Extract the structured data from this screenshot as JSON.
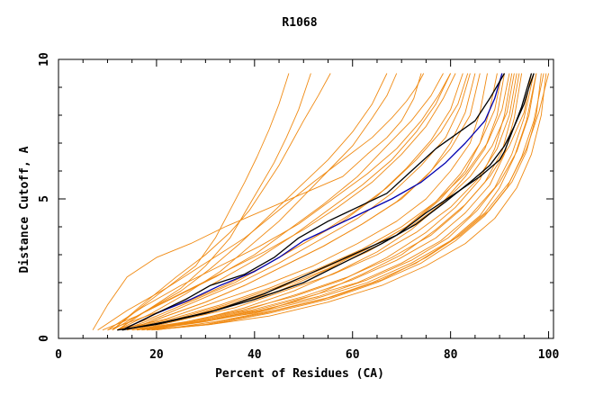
{
  "chart_data": {
    "type": "line",
    "title": "R1068",
    "xlabel": "Percent of Residues (CA)",
    "ylabel": "Distance Cutoff, A",
    "xlim": [
      0,
      101
    ],
    "ylim": [
      0,
      10
    ],
    "xticks": [
      0,
      20,
      40,
      60,
      80,
      100
    ],
    "yticks": [
      0,
      5,
      10
    ],
    "grid": false,
    "legend": "none",
    "colors": {
      "models": "#f08a12",
      "highlight_blue": "#0000b0",
      "highlight_black": "#000000"
    },
    "series": [
      {
        "color": "#0000b0",
        "x": [
          13,
          20,
          27,
          33,
          40,
          45,
          50,
          56,
          62,
          68,
          74,
          79,
          83,
          87,
          89,
          90.5
        ],
        "y": [
          0.3,
          0.9,
          1.4,
          1.9,
          2.4,
          2.9,
          3.5,
          4.0,
          4.5,
          5.0,
          5.6,
          6.3,
          7.0,
          7.8,
          8.6,
          9.5
        ]
      },
      {
        "color": "#000000",
        "x": [
          13,
          20,
          26,
          31,
          38,
          44,
          49,
          55,
          61,
          67,
          72,
          77,
          81,
          85,
          88,
          91
        ],
        "y": [
          0.3,
          0.9,
          1.4,
          1.9,
          2.3,
          2.9,
          3.6,
          4.2,
          4.7,
          5.2,
          6.0,
          6.8,
          7.3,
          7.8,
          8.6,
          9.5
        ]
      },
      {
        "color": "#000000",
        "x": [
          13,
          22,
          32,
          42,
          51,
          60,
          69,
          75,
          81,
          86,
          90,
          91,
          93,
          95,
          96,
          97
        ],
        "y": [
          0.3,
          0.6,
          1.0,
          1.6,
          2.3,
          3.0,
          3.7,
          4.5,
          5.2,
          5.8,
          6.4,
          6.7,
          7.6,
          8.4,
          9.0,
          9.5
        ]
      },
      {
        "color": "#000000",
        "x": [
          12,
          20,
          30,
          40,
          50,
          58,
          66,
          73,
          79,
          84,
          88,
          91,
          93,
          94.5,
          95.5,
          96.5
        ],
        "y": [
          0.3,
          0.5,
          0.9,
          1.4,
          2.0,
          2.7,
          3.4,
          4.1,
          4.9,
          5.6,
          6.2,
          6.9,
          7.6,
          8.3,
          8.9,
          9.5
        ]
      },
      {
        "color": "#f08a12",
        "x": [
          7,
          10,
          14,
          20,
          27,
          34,
          42,
          50,
          58,
          63,
          67,
          70,
          72.5,
          74
        ],
        "y": [
          0.3,
          1.2,
          2.2,
          2.9,
          3.4,
          4.0,
          4.6,
          5.2,
          5.8,
          6.6,
          7.2,
          7.8,
          8.6,
          9.5
        ]
      },
      {
        "color": "#f08a12",
        "x": [
          8,
          14,
          22,
          30,
          38,
          45,
          52,
          58,
          64,
          68,
          71,
          73,
          74.5
        ],
        "y": [
          0.3,
          1.0,
          1.8,
          2.7,
          3.6,
          4.6,
          5.6,
          6.4,
          7.2,
          7.9,
          8.5,
          9.0,
          9.5
        ]
      },
      {
        "color": "#f08a12",
        "x": [
          9,
          16,
          24,
          32,
          40,
          47,
          54,
          61,
          67,
          72,
          76,
          78.5
        ],
        "y": [
          0.3,
          0.8,
          1.5,
          2.2,
          3.0,
          3.9,
          4.8,
          5.8,
          6.9,
          7.8,
          8.7,
          9.5
        ]
      },
      {
        "color": "#f08a12",
        "x": [
          10,
          18,
          26,
          34,
          42,
          50,
          58,
          65,
          71,
          76,
          80,
          82.5
        ],
        "y": [
          0.3,
          0.8,
          1.3,
          1.9,
          2.6,
          3.4,
          4.2,
          5.1,
          6.1,
          7.1,
          8.2,
          9.5
        ]
      },
      {
        "color": "#f08a12",
        "x": [
          12,
          22,
          32,
          42,
          52,
          61,
          69,
          75,
          80,
          84,
          86,
          87.5
        ],
        "y": [
          0.3,
          0.7,
          1.3,
          1.9,
          2.6,
          3.4,
          4.2,
          5.0,
          6.0,
          7.0,
          8.1,
          9.5
        ]
      },
      {
        "color": "#f08a12",
        "x": [
          11,
          17,
          24,
          30,
          35,
          39,
          42,
          45,
          47.5,
          50,
          53,
          55.5
        ],
        "y": [
          0.3,
          1.2,
          2.2,
          3.0,
          3.8,
          4.6,
          5.4,
          6.2,
          7.0,
          7.8,
          8.7,
          9.5
        ]
      },
      {
        "color": "#f08a12",
        "x": [
          12,
          18,
          25,
          30,
          35,
          38,
          41,
          44,
          46.5,
          49,
          51.5
        ],
        "y": [
          0.3,
          1.0,
          1.8,
          2.6,
          3.6,
          4.5,
          5.4,
          6.3,
          7.2,
          8.2,
          9.5
        ]
      },
      {
        "color": "#f08a12",
        "x": [
          11,
          16,
          22,
          28,
          32,
          35,
          38,
          40.5,
          43,
          45,
          47
        ],
        "y": [
          0.3,
          1.0,
          1.8,
          2.6,
          3.6,
          4.6,
          5.6,
          6.5,
          7.5,
          8.4,
          9.5
        ]
      },
      {
        "color": "#f08a12",
        "x": [
          12,
          19,
          26,
          33,
          39,
          45,
          50,
          55,
          60,
          64,
          67,
          69
        ],
        "y": [
          0.3,
          0.9,
          1.6,
          2.4,
          3.3,
          4.2,
          5.1,
          6.0,
          6.9,
          7.9,
          8.7,
          9.5
        ]
      },
      {
        "color": "#f08a12",
        "x": [
          11,
          18,
          25,
          31,
          37,
          43,
          49,
          55,
          60,
          64,
          67
        ],
        "y": [
          0.3,
          1.0,
          1.7,
          2.5,
          3.4,
          4.4,
          5.4,
          6.4,
          7.4,
          8.4,
          9.5
        ]
      },
      {
        "color": "#f08a12",
        "x": [
          13,
          20,
          27,
          34,
          41,
          48,
          55,
          62,
          68,
          73,
          77,
          80
        ],
        "y": [
          0.3,
          0.9,
          1.5,
          2.2,
          2.9,
          3.7,
          4.6,
          5.5,
          6.4,
          7.4,
          8.4,
          9.5
        ]
      },
      {
        "color": "#f08a12",
        "x": [
          13,
          21,
          29,
          37,
          45,
          53,
          61,
          68,
          74,
          79,
          82,
          84
        ],
        "y": [
          0.3,
          0.8,
          1.4,
          2.0,
          2.7,
          3.5,
          4.3,
          5.2,
          6.2,
          7.2,
          8.3,
          9.5
        ]
      },
      {
        "color": "#f08a12",
        "x": [
          14,
          22,
          30,
          38,
          46,
          54,
          62,
          70,
          76,
          80,
          83,
          85
        ],
        "y": [
          0.3,
          0.8,
          1.3,
          1.9,
          2.6,
          3.3,
          4.1,
          5.0,
          6.0,
          7.0,
          8.1,
          9.5
        ]
      },
      {
        "color": "#f08a12",
        "x": [
          12,
          20,
          28,
          36,
          44,
          52,
          60,
          67,
          73,
          78,
          81.5,
          83.5
        ],
        "y": [
          0.3,
          0.8,
          1.4,
          2.0,
          2.8,
          3.6,
          4.5,
          5.4,
          6.4,
          7.4,
          8.4,
          9.5
        ]
      },
      {
        "color": "#f08a12",
        "x": [
          14,
          22,
          30,
          38,
          46,
          54,
          62,
          69,
          75,
          80,
          84,
          86
        ],
        "y": [
          0.3,
          0.8,
          1.3,
          1.9,
          2.6,
          3.3,
          4.1,
          4.9,
          5.8,
          6.8,
          8.0,
          9.5
        ]
      },
      {
        "color": "#f08a12",
        "x": [
          15,
          25,
          35,
          45,
          55,
          64,
          72,
          78,
          83,
          86,
          88,
          89.5
        ],
        "y": [
          0.3,
          0.7,
          1.2,
          1.8,
          2.5,
          3.3,
          4.1,
          5.0,
          6.0,
          7.0,
          8.2,
          9.5
        ]
      },
      {
        "color": "#f08a12",
        "x": [
          16,
          27,
          38,
          48,
          57,
          65,
          72,
          78,
          83,
          87,
          89.5,
          91
        ],
        "y": [
          0.3,
          0.6,
          1.1,
          1.7,
          2.4,
          3.1,
          3.9,
          4.8,
          5.8,
          6.8,
          8.0,
          9.5
        ]
      },
      {
        "color": "#f08a12",
        "x": [
          15,
          26,
          37,
          48,
          58,
          67,
          75,
          81,
          86,
          89,
          91,
          92.5
        ],
        "y": [
          0.3,
          0.6,
          1.0,
          1.5,
          2.1,
          2.9,
          3.8,
          4.7,
          5.7,
          6.8,
          8.0,
          9.5
        ]
      },
      {
        "color": "#f08a12",
        "x": [
          17,
          28,
          39,
          50,
          60,
          69,
          77,
          83,
          88,
          91,
          93,
          94.5
        ],
        "y": [
          0.3,
          0.6,
          1.0,
          1.5,
          2.1,
          2.8,
          3.6,
          4.5,
          5.5,
          6.6,
          7.9,
          9.5
        ]
      },
      {
        "color": "#f08a12",
        "x": [
          16,
          27,
          38,
          49,
          59,
          68,
          76,
          82,
          87,
          90.5,
          92.5,
          94
        ],
        "y": [
          0.3,
          0.6,
          1.0,
          1.6,
          2.2,
          2.9,
          3.7,
          4.6,
          5.6,
          6.7,
          8.0,
          9.5
        ]
      },
      {
        "color": "#f08a12",
        "x": [
          18,
          29,
          40,
          51,
          61,
          70,
          78,
          84,
          89,
          92.5,
          95,
          97
        ],
        "y": [
          0.3,
          0.6,
          1.0,
          1.5,
          2.0,
          2.7,
          3.5,
          4.4,
          5.4,
          6.6,
          7.9,
          9.5
        ]
      },
      {
        "color": "#f08a12",
        "x": [
          17,
          28,
          40,
          52,
          63,
          72,
          80,
          86,
          90,
          93,
          95.5,
          97.5
        ],
        "y": [
          0.3,
          0.6,
          0.9,
          1.4,
          2.0,
          2.7,
          3.5,
          4.4,
          5.4,
          6.5,
          7.8,
          9.5
        ]
      },
      {
        "color": "#f08a12",
        "x": [
          19,
          31,
          43,
          55,
          65,
          74,
          81,
          87,
          91.5,
          94.5,
          97,
          99
        ],
        "y": [
          0.3,
          0.5,
          0.9,
          1.4,
          2.0,
          2.7,
          3.5,
          4.4,
          5.4,
          6.5,
          7.8,
          9.5
        ]
      },
      {
        "color": "#f08a12",
        "x": [
          18,
          30,
          42,
          54,
          64,
          73,
          81,
          87,
          92,
          95.5,
          98,
          100
        ],
        "y": [
          0.3,
          0.5,
          0.9,
          1.4,
          2.0,
          2.7,
          3.6,
          4.5,
          5.6,
          6.8,
          8.1,
          9.5
        ]
      },
      {
        "color": "#f08a12",
        "x": [
          20,
          32,
          44,
          56,
          66,
          75,
          82,
          88,
          92.5,
          95.5,
          97.5,
          98.5
        ],
        "y": [
          0.3,
          0.6,
          1.0,
          1.5,
          2.1,
          2.9,
          3.7,
          4.6,
          5.6,
          6.7,
          8.0,
          9.5
        ]
      },
      {
        "color": "#f08a12",
        "x": [
          15,
          25,
          35,
          45,
          54,
          63,
          71,
          78,
          84,
          88.5,
          91.5,
          93
        ],
        "y": [
          0.3,
          0.7,
          1.2,
          1.7,
          2.4,
          3.1,
          3.9,
          4.8,
          5.8,
          6.9,
          8.1,
          9.5
        ]
      },
      {
        "color": "#f08a12",
        "x": [
          16,
          26,
          36,
          46,
          56,
          65,
          73,
          80,
          85.5,
          89.5,
          92,
          93.5
        ],
        "y": [
          0.3,
          0.7,
          1.1,
          1.7,
          2.3,
          3.0,
          3.8,
          4.7,
          5.7,
          6.8,
          8.0,
          9.5
        ]
      },
      {
        "color": "#f08a12",
        "x": [
          14,
          24,
          34,
          44,
          54,
          63,
          71,
          77,
          82,
          86,
          89,
          90.5
        ],
        "y": [
          0.3,
          0.7,
          1.2,
          1.8,
          2.5,
          3.2,
          4.0,
          4.9,
          5.9,
          7.0,
          8.2,
          9.5
        ]
      },
      {
        "color": "#f08a12",
        "x": [
          17,
          29,
          41,
          53,
          63,
          72,
          79.5,
          85.5,
          90,
          93.5,
          96,
          97.5
        ],
        "y": [
          0.3,
          0.6,
          1.0,
          1.5,
          2.1,
          2.8,
          3.6,
          4.6,
          5.6,
          6.7,
          8.0,
          9.5
        ]
      },
      {
        "color": "#f08a12",
        "x": [
          18,
          30,
          42,
          53,
          62,
          70,
          77,
          83,
          88,
          92,
          95,
          96.5
        ],
        "y": [
          0.3,
          0.6,
          1.0,
          1.6,
          2.3,
          3.0,
          3.9,
          4.8,
          5.8,
          6.9,
          8.1,
          9.5
        ]
      },
      {
        "color": "#f08a12",
        "x": [
          13,
          23,
          33,
          43,
          53,
          62,
          70,
          77,
          83,
          87.5,
          90.5,
          92
        ],
        "y": [
          0.3,
          0.7,
          1.2,
          1.8,
          2.5,
          3.2,
          4.0,
          4.9,
          5.9,
          7.0,
          8.2,
          9.5
        ]
      },
      {
        "color": "#f08a12",
        "x": [
          19,
          31,
          43,
          55,
          66,
          75,
          83,
          89,
          93.5,
          96.5,
          98.5,
          99.5
        ],
        "y": [
          0.3,
          0.5,
          0.8,
          1.3,
          1.9,
          2.6,
          3.4,
          4.3,
          5.4,
          6.6,
          8.0,
          9.5
        ]
      },
      {
        "color": "#f08a12",
        "x": [
          12,
          18,
          26,
          34,
          42,
          50,
          57,
          64,
          70,
          75,
          78.5,
          81
        ],
        "y": [
          0.3,
          1.0,
          1.7,
          2.4,
          3.1,
          3.9,
          4.7,
          5.6,
          6.6,
          7.6,
          8.6,
          9.5
        ]
      },
      {
        "color": "#f08a12",
        "x": [
          10,
          17,
          25,
          33,
          41,
          49,
          56,
          63,
          69,
          74,
          77.5,
          80
        ],
        "y": [
          0.3,
          1.1,
          1.9,
          2.6,
          3.3,
          4.1,
          5.0,
          5.9,
          6.8,
          7.8,
          8.7,
          9.5
        ]
      }
    ]
  }
}
